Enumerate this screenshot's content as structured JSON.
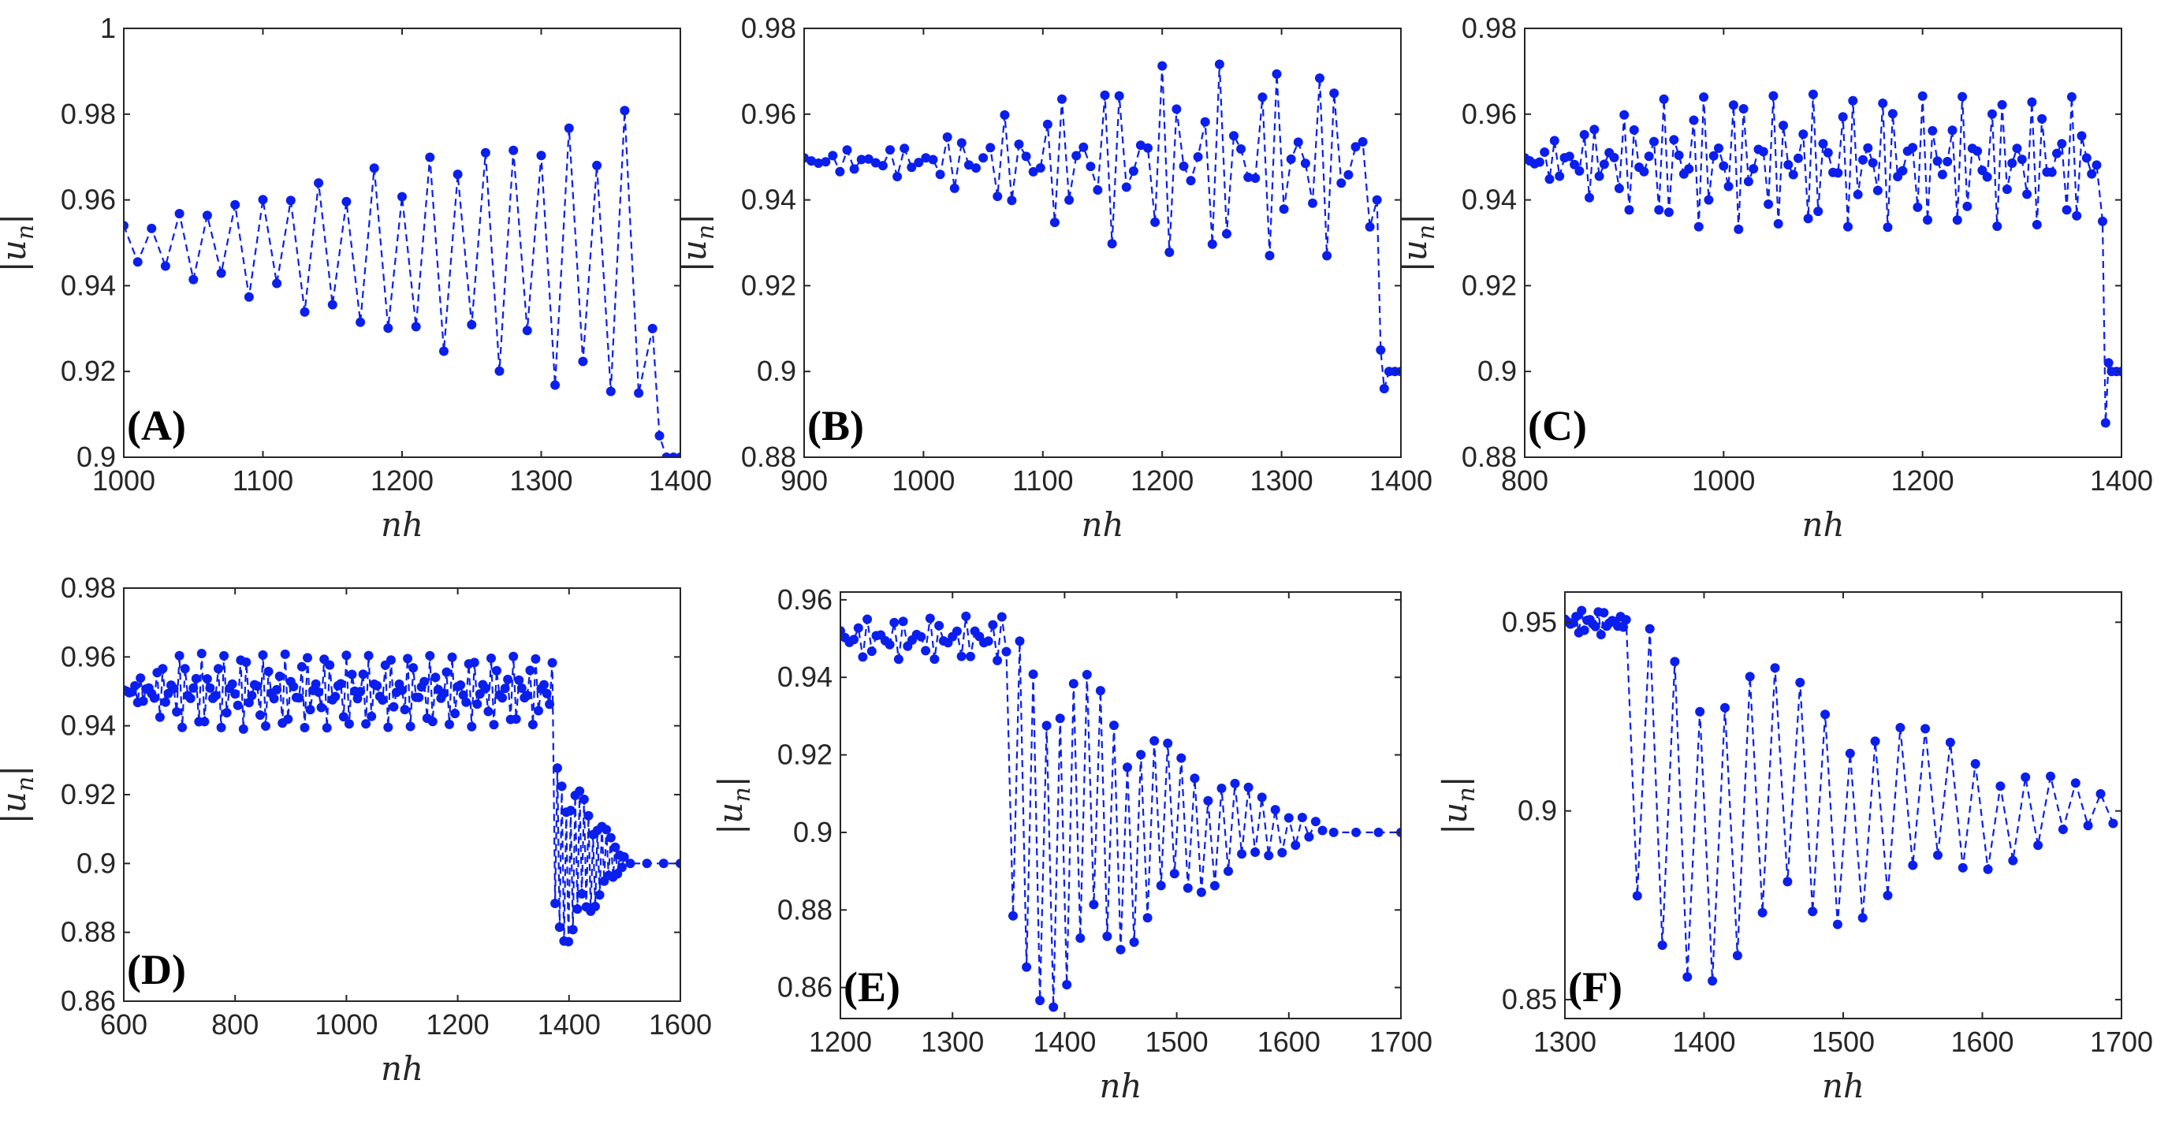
{
  "figure": {
    "description_color": "#0a1fee",
    "frame_color": "#262626"
  },
  "chart_data": [
    {
      "type": "line",
      "panel_label": "(A)",
      "xlabel": "nh",
      "ylabel": "|u_n|",
      "xlim": [
        1000,
        1400
      ],
      "ylim": [
        0.9,
        1.0
      ],
      "xticks": [
        "1000",
        "1100",
        "1200",
        "1300",
        "1400"
      ],
      "yticks": [
        "0.9",
        "0.92",
        "0.94",
        "0.96",
        "0.98",
        "1"
      ],
      "signal": {
        "kind": "growing",
        "start": 1000,
        "end": 1375,
        "step": 10,
        "center_start": 0.95,
        "center_end": 0.946,
        "amp_start": 0.004,
        "amp_end": 0.036,
        "tail": [
          [
            1380,
            0.93
          ],
          [
            1385,
            0.905
          ],
          [
            1390,
            0.9
          ],
          [
            1395,
            0.9
          ],
          [
            1400,
            0.9
          ]
        ]
      }
    },
    {
      "type": "line",
      "panel_label": "(B)",
      "xlabel": "nh",
      "ylabel": "|u_n|",
      "xlim": [
        900,
        1400
      ],
      "ylim": [
        0.88,
        0.98
      ],
      "xticks": [
        "900",
        "1000",
        "1100",
        "1200",
        "1300",
        "1400"
      ],
      "yticks": [
        "0.88",
        "0.9",
        "0.92",
        "0.94",
        "0.96",
        "0.98"
      ],
      "signal": {
        "kind": "envelope",
        "start": 900,
        "end": 1378,
        "step": 6,
        "center": 0.949,
        "envelope": [
          [
            900,
            0.002
          ],
          [
            1000,
            0.004
          ],
          [
            1100,
            0.014
          ],
          [
            1200,
            0.023
          ],
          [
            1378,
            0.022
          ]
        ],
        "tail": [
          [
            1380,
            0.94
          ],
          [
            1383,
            0.905
          ],
          [
            1386,
            0.896
          ],
          [
            1390,
            0.9
          ],
          [
            1395,
            0.9
          ],
          [
            1400,
            0.9
          ]
        ]
      }
    },
    {
      "type": "line",
      "panel_label": "(C)",
      "xlabel": "nh",
      "ylabel": "|u_n|",
      "xlim": [
        800,
        1400
      ],
      "ylim": [
        0.88,
        0.98
      ],
      "xticks": [
        "800",
        "1000",
        "1200",
        "1400"
      ],
      "yticks": [
        "0.88",
        "0.9",
        "0.92",
        "0.94",
        "0.96",
        "0.98"
      ],
      "signal": {
        "kind": "envelope",
        "start": 800,
        "end": 1378,
        "step": 5,
        "center": 0.949,
        "envelope": [
          [
            800,
            0.002
          ],
          [
            880,
            0.01
          ],
          [
            960,
            0.016
          ],
          [
            1378,
            0.015
          ]
        ],
        "tail": [
          [
            1381,
            0.935
          ],
          [
            1384,
            0.888
          ],
          [
            1387,
            0.902
          ],
          [
            1390,
            0.9
          ],
          [
            1395,
            0.9
          ],
          [
            1400,
            0.9
          ]
        ]
      }
    },
    {
      "type": "line",
      "panel_label": "(D)",
      "xlabel": "nh",
      "ylabel": "|u_n|",
      "xlim": [
        600,
        1600
      ],
      "ylim": [
        0.86,
        0.98
      ],
      "xticks": [
        "600",
        "800",
        "1000",
        "1200",
        "1400",
        "1600"
      ],
      "yticks": [
        "0.86",
        "0.88",
        "0.9",
        "0.92",
        "0.94",
        "0.96",
        "0.98"
      ],
      "signal": {
        "kind": "envelope",
        "start": 600,
        "end": 1370,
        "step": 5,
        "center": 0.95,
        "envelope": [
          [
            600,
            0.001
          ],
          [
            700,
            0.011
          ],
          [
            800,
            0.011
          ],
          [
            1370,
            0.01
          ]
        ],
        "tail_osc": {
          "start": 1375,
          "end": 1500,
          "step": 4,
          "center": 0.901,
          "envelope": [
            [
              1375,
              0.028
            ],
            [
              1420,
              0.02
            ],
            [
              1500,
              0.001
            ]
          ]
        },
        "tail": [
          [
            1510,
            0.9
          ],
          [
            1540,
            0.9
          ],
          [
            1570,
            0.9
          ],
          [
            1600,
            0.9
          ]
        ]
      }
    },
    {
      "type": "line",
      "panel_label": "(E)",
      "xlabel": "nh",
      "ylabel": "|u_n|",
      "xlim": [
        1200,
        1700
      ],
      "ylim": [
        0.852,
        0.962
      ],
      "xticks": [
        "1200",
        "1300",
        "1400",
        "1500",
        "1600",
        "1700"
      ],
      "yticks": [
        "0.86",
        "0.88",
        "0.9",
        "0.92",
        "0.94",
        "0.96"
      ],
      "signal": {
        "kind": "envelope",
        "start": 1200,
        "end": 1350,
        "step": 4,
        "center": 0.95,
        "envelope": [
          [
            1200,
            0.005
          ],
          [
            1350,
            0.006
          ]
        ],
        "tail_osc": {
          "start": 1354,
          "end": 1630,
          "step": 6,
          "center": 0.901,
          "envelope": [
            [
              1354,
              0.05
            ],
            [
              1400,
              0.045
            ],
            [
              1500,
              0.02
            ],
            [
              1630,
              0.001
            ]
          ]
        },
        "tail": [
          [
            1640,
            0.9
          ],
          [
            1660,
            0.9
          ],
          [
            1680,
            0.9
          ],
          [
            1700,
            0.9
          ]
        ]
      }
    },
    {
      "type": "line",
      "panel_label": "(F)",
      "xlabel": "nh",
      "ylabel": "|u_n|",
      "xlim": [
        1300,
        1700
      ],
      "ylim": [
        0.845,
        0.958
      ],
      "xticks": [
        "1300",
        "1400",
        "1500",
        "1600",
        "1700"
      ],
      "yticks": [
        "0.85",
        "0.9",
        "0.95"
      ],
      "signal": {
        "kind": "envelope",
        "start": 1300,
        "end": 1345,
        "step": 2,
        "center": 0.95,
        "envelope": [
          [
            1300,
            0.002
          ],
          [
            1320,
            0.004
          ],
          [
            1345,
            0.001
          ]
        ],
        "tail_osc": {
          "start": 1352,
          "end": 1700,
          "step": 9,
          "center": 0.9,
          "envelope": [
            [
              1352,
              0.05
            ],
            [
              1400,
              0.046
            ],
            [
              1550,
              0.023
            ],
            [
              1700,
              0.003
            ]
          ]
        },
        "tail": []
      }
    }
  ]
}
